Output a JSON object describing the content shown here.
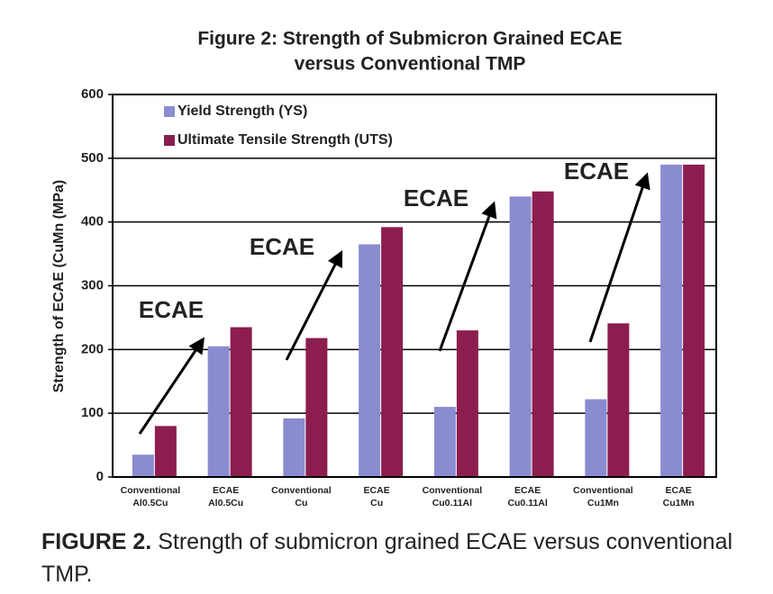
{
  "chart_data": {
    "type": "bar",
    "title": [
      "Figure 2:  Strength of Submicron Grained ECAE",
      "versus Conventional TMP"
    ],
    "y_label": "Strength of ECAE (CuMn (MPa)",
    "categories": [
      [
        "Conventional",
        "Al0.5Cu"
      ],
      [
        "ECAE",
        "Al0.5Cu"
      ],
      [
        "Conventional",
        "Cu"
      ],
      [
        "ECAE",
        "Cu"
      ],
      [
        "Conventional",
        "Cu0.11Al"
      ],
      [
        "ECAE",
        "Cu0.11Al"
      ],
      [
        "Conventional",
        "Cu1Mn"
      ],
      [
        "ECAE",
        "Cu1Mn"
      ]
    ],
    "series": [
      {
        "name": "Yield Strength (YS)",
        "color": "#8a8cd0",
        "values": [
          35,
          205,
          92,
          365,
          110,
          440,
          122,
          490
        ]
      },
      {
        "name": "Ultimate Tensile Strength (UTS)",
        "color": "#8c1e4f",
        "values": [
          80,
          235,
          218,
          392,
          230,
          448,
          241,
          490
        ]
      }
    ],
    "ylim": [
      0,
      600
    ],
    "yticks": [
      0,
      100,
      200,
      300,
      400,
      500,
      600
    ],
    "grid": true,
    "legend": "top-left",
    "annotations": [
      "ECAE",
      "ECAE",
      "ECAE",
      "ECAE"
    ]
  },
  "caption": {
    "label": "FIGURE 2.",
    "text": "Strength of submicron grained ECAE versus conventional TMP."
  }
}
